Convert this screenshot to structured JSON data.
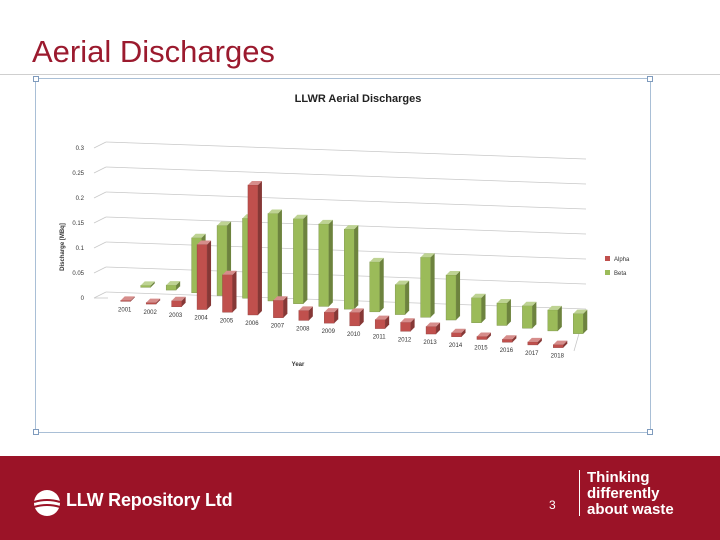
{
  "slide": {
    "title": "Aerial Discharges",
    "page_number": "3"
  },
  "footer": {
    "logo_text": "LLW Repository Ltd",
    "tagline": [
      "Thinking",
      "differently",
      "about waste"
    ]
  },
  "colors": {
    "brand": "#9b1327",
    "alpha": "#c0504d",
    "beta": "#9bbb59"
  },
  "chart_data": {
    "type": "bar",
    "title": "LLWR Aerial Discharges",
    "xlabel": "Year",
    "ylabel": "Discharge [MBq]",
    "categories": [
      "2001",
      "2002",
      "2003",
      "2004",
      "2005",
      "2006",
      "2007",
      "2008",
      "2009",
      "2010",
      "2011",
      "2012",
      "2013",
      "2014",
      "2015",
      "2016",
      "2017",
      "2018"
    ],
    "series": [
      {
        "name": "Alpha",
        "color": "#c0504d",
        "values": [
          0.002,
          0.003,
          0.012,
          0.13,
          0.075,
          0.26,
          0.035,
          0.02,
          0.022,
          0.027,
          0.018,
          0.018,
          0.015,
          0.008,
          0.006,
          0.006,
          0.006,
          0.006
        ]
      },
      {
        "name": "Beta",
        "color": "#9bbb59",
        "values": [
          0.004,
          0.01,
          0.11,
          0.14,
          0.16,
          0.175,
          0.17,
          0.165,
          0.16,
          0.1,
          0.06,
          0.12,
          0.09,
          0.05,
          0.045,
          0.045,
          0.042,
          0.04
        ]
      }
    ],
    "yticks": [
      "0",
      "0.05",
      "0.1",
      "0.15",
      "0.2",
      "0.25",
      "0.3"
    ],
    "ylim": [
      0,
      0.3
    ],
    "grid": true,
    "legend": "right",
    "view": "3d-clustered"
  }
}
